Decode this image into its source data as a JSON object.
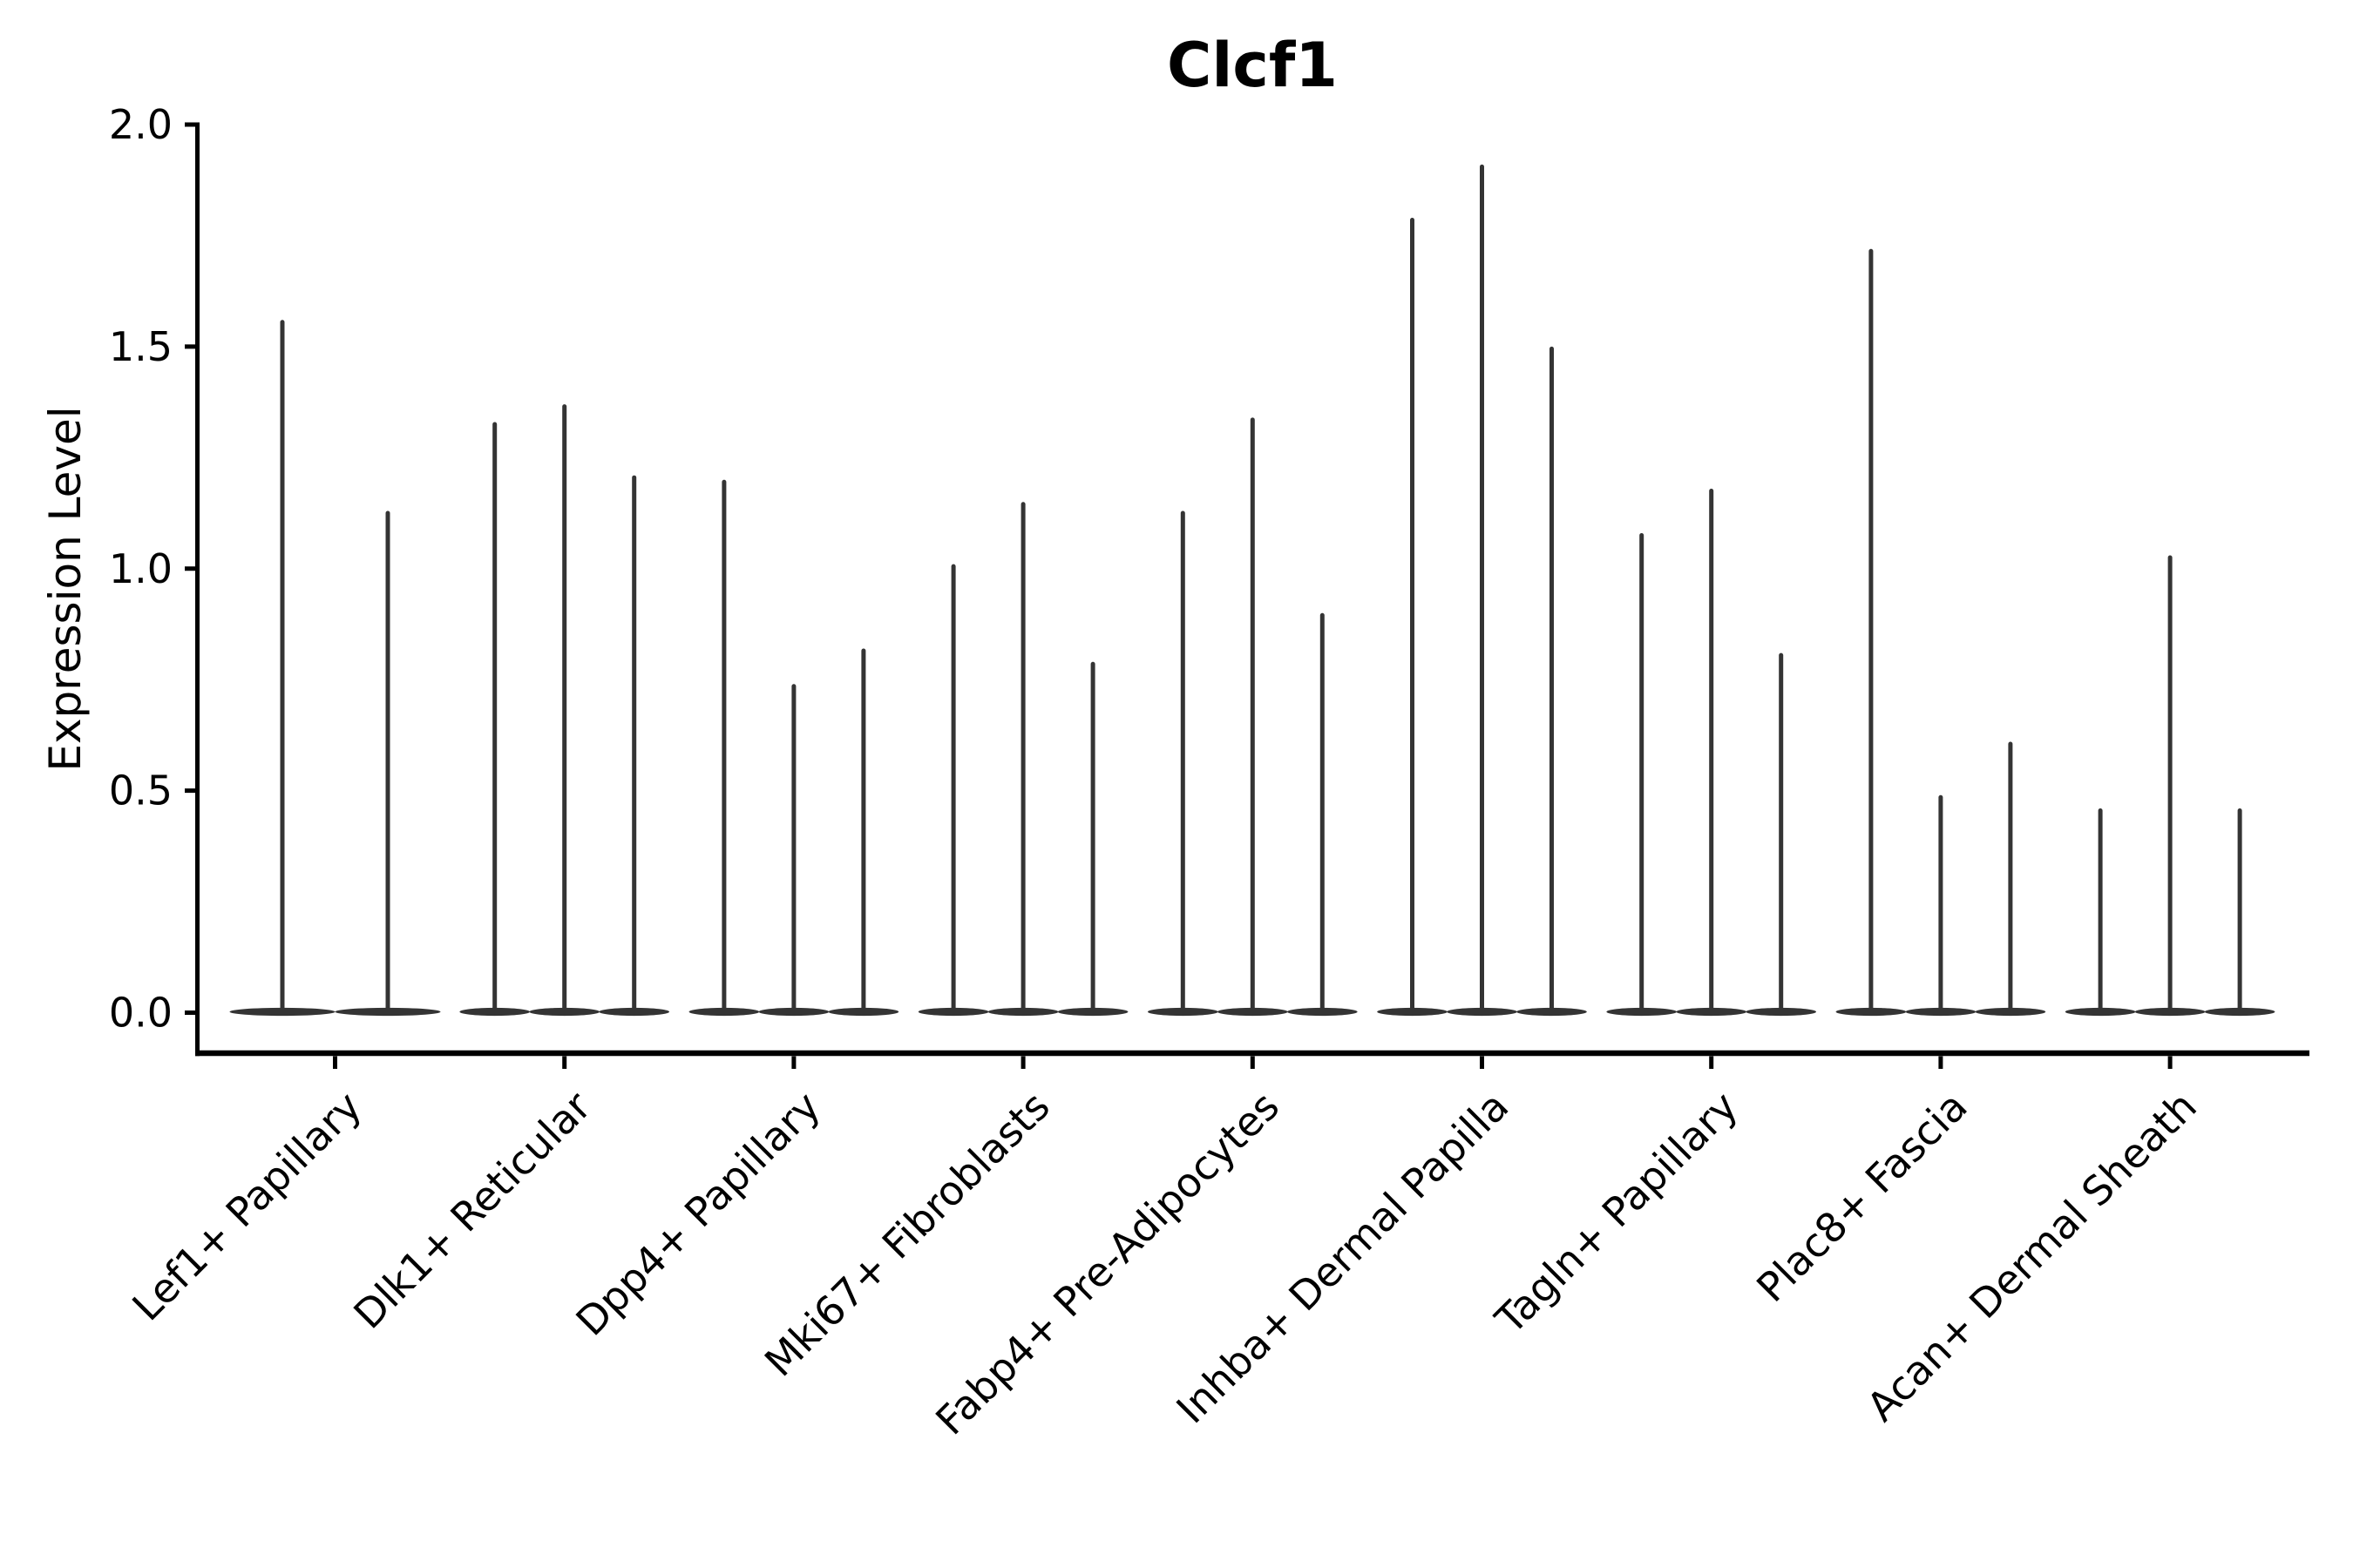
{
  "chart_data": {
    "type": "violin",
    "title": "Clcf1",
    "ylabel": "Expression Level",
    "xlabel": "",
    "ylim": [
      0.0,
      2.0
    ],
    "y_ticks": [
      "0.0",
      "0.5",
      "1.0",
      "1.5",
      "2.0"
    ],
    "grid": false,
    "legend_position": "none",
    "shape_note": "Each violin is a wide flat lens at expression 0 with a thin vertical density spike rising to its maximum expression value.",
    "categories": [
      "Lef1+ Papillary",
      "Dlk1+ Reticular",
      "Dpp4+ Papillary",
      "Mki67+ Fibroblasts",
      "Fabp4+ Pre-Adipocytes",
      "Inhba+ Dermal Papilla",
      "Tagln+ Papillary",
      "Plac8+ Fascia",
      "Acan+ Dermal Sheath"
    ],
    "groups": [
      {
        "label": "Lef1+ Papillary",
        "violin_max_values": [
          1.56,
          1.13
        ]
      },
      {
        "label": "Dlk1+ Reticular",
        "violin_max_values": [
          1.33,
          1.37,
          1.21
        ]
      },
      {
        "label": "Dpp4+ Papillary",
        "violin_max_values": [
          1.2,
          0.74,
          0.82
        ]
      },
      {
        "label": "Mki67+ Fibroblasts",
        "violin_max_values": [
          1.01,
          1.15,
          0.79
        ]
      },
      {
        "label": "Fabp4+ Pre-Adipocytes",
        "violin_max_values": [
          1.13,
          1.34,
          0.9
        ]
      },
      {
        "label": "Inhba+ Dermal Papilla",
        "violin_max_values": [
          1.79,
          1.91,
          1.5
        ]
      },
      {
        "label": "Tagln+ Papillary",
        "violin_max_values": [
          1.08,
          1.18,
          0.81
        ]
      },
      {
        "label": "Plac8+ Fascia",
        "violin_max_values": [
          1.72,
          0.49,
          0.61
        ]
      },
      {
        "label": "Acan+ Dermal Sheath",
        "violin_max_values": [
          0.46,
          1.03,
          0.46
        ]
      }
    ],
    "colors": {
      "violin_fill": "#343434",
      "axis": "#000000",
      "text": "#000000",
      "background": "#ffffff"
    }
  }
}
